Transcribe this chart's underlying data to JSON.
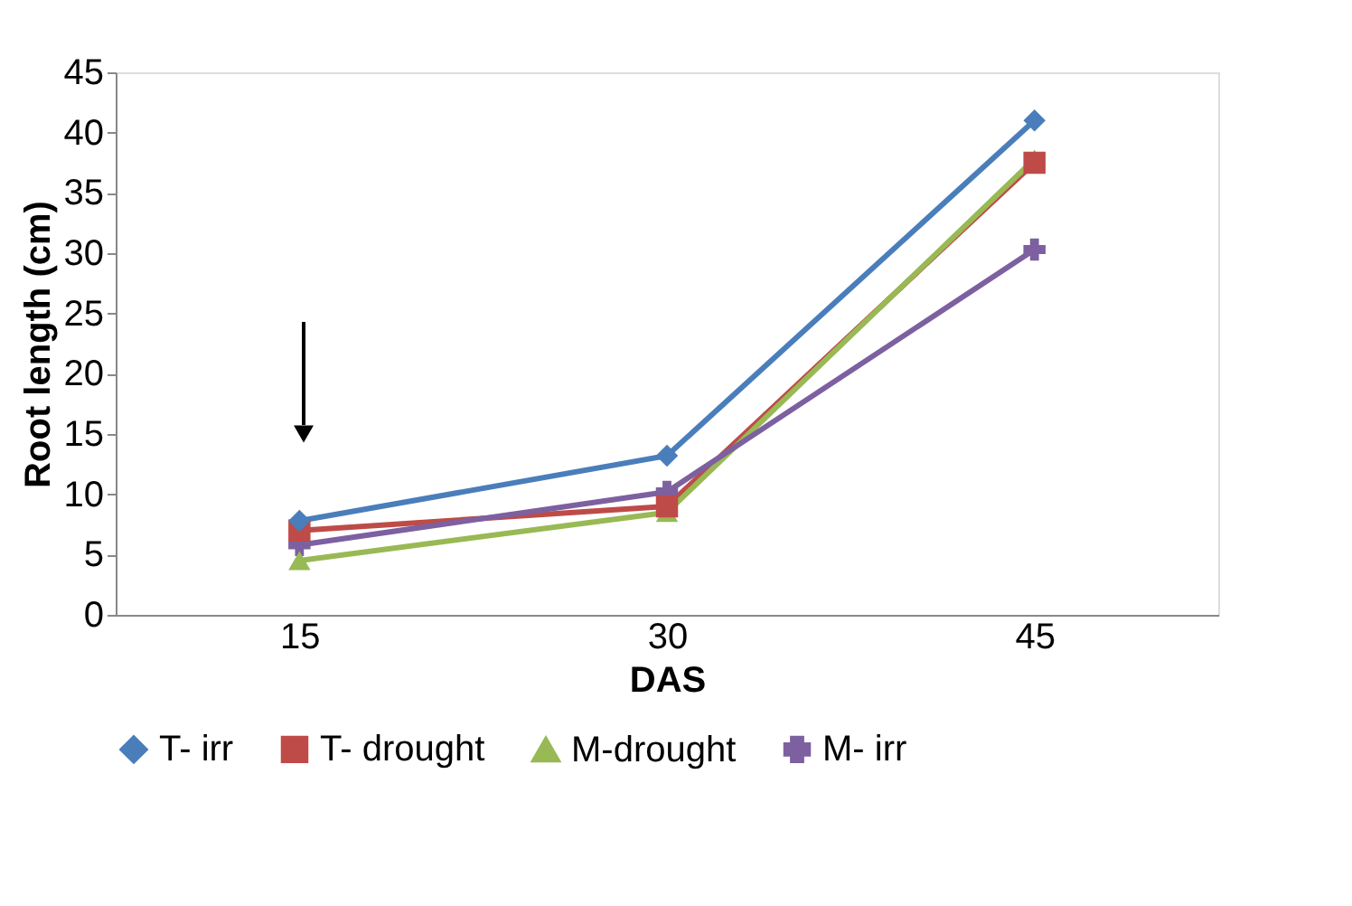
{
  "chart_data": {
    "type": "line",
    "xlabel": "DAS",
    "ylabel": "Root length (cm)",
    "categories": [
      "15",
      "30",
      "45"
    ],
    "ylim": [
      0,
      45
    ],
    "yticks": [
      0,
      5,
      10,
      15,
      20,
      25,
      30,
      35,
      40,
      45
    ],
    "grid": false,
    "legend": "bottom",
    "series": [
      {
        "name": "T- irr",
        "color": "#4a7ebb",
        "marker": "diamond",
        "values": [
          7.8,
          13.2,
          41.0
        ]
      },
      {
        "name": "T- drought",
        "color": "#be4b48",
        "marker": "square",
        "values": [
          7.0,
          9.0,
          37.5
        ]
      },
      {
        "name": "M-drought",
        "color": "#98b954",
        "marker": "triangle",
        "values": [
          4.5,
          8.5,
          37.8
        ]
      },
      {
        "name": "M- irr",
        "color": "#7d60a0",
        "marker": "cross",
        "values": [
          5.8,
          10.2,
          30.3
        ]
      }
    ]
  }
}
